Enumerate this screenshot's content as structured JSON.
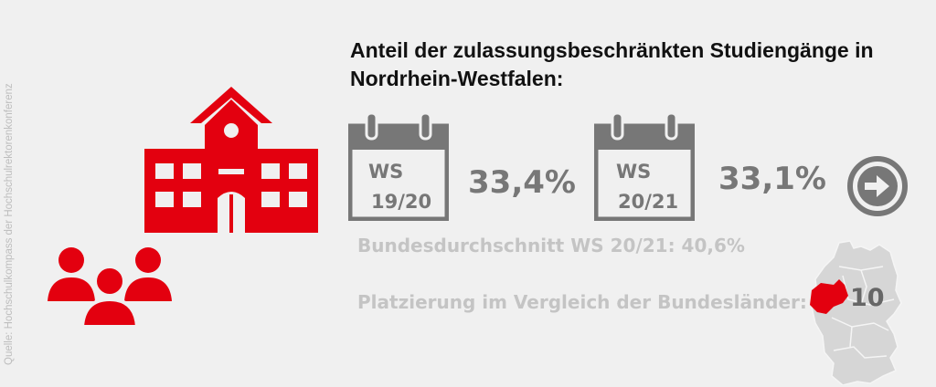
{
  "source": "Quelle: Hochschulkompass der Hochschulrektorenkonferenz",
  "title_line1": "Anteil der zulassungsbeschränkten Studiengänge in",
  "title_line2": "Nordrhein-Westfalen:",
  "semesters": [
    {
      "label": "WS",
      "year": "19/20",
      "value": "33,4%"
    },
    {
      "label": "WS",
      "year": "20/21",
      "value": "33,1%"
    }
  ],
  "national_average": "Bundesdurchschnitt WS 20/21: 40,6%",
  "ranking_label": "Platzierung im Vergleich der Bundesländer:",
  "ranking_value": "10",
  "colors": {
    "accent": "#e3000f",
    "grey": "#777777",
    "light_grey": "#c4c4c4",
    "map": "#d6d6d6"
  },
  "icons": [
    "university-building-icon",
    "people-group-icon",
    "calendar-icon",
    "arrow-right-icon",
    "germany-map-icon"
  ]
}
